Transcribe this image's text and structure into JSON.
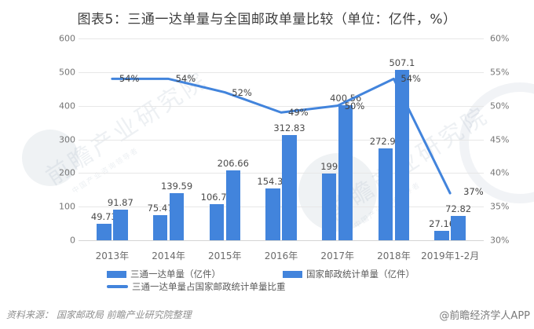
{
  "chart_data": {
    "type": "bar+line",
    "title": "图表5：三通一达单量与全国邮政单量比较（单位：亿件，%）",
    "categories": [
      "2013年",
      "2014年",
      "2015年",
      "2016年",
      "2017年",
      "2018年",
      "2019年1-2月"
    ],
    "series": [
      {
        "name": "三通一达单量（亿件）",
        "type": "bar",
        "axis": "left",
        "values": [
          49.73,
          75.47,
          106.77,
          154.32,
          199,
          272.95,
          27.16
        ],
        "labels": [
          "49.73",
          "75.47",
          "106.77",
          "154.32",
          "199",
          "272.95",
          "27.16"
        ],
        "color": "#4284dc"
      },
      {
        "name": "国家邮政统计单量（亿件）",
        "type": "bar",
        "axis": "left",
        "values": [
          91.87,
          139.59,
          206.66,
          312.83,
          400.56,
          507.1,
          72.82
        ],
        "labels": [
          "91.87",
          "139.59",
          "206.66",
          "312.83",
          "400.56",
          "507.1",
          "72.82"
        ],
        "color": "#4284dc"
      },
      {
        "name": "三通一达单量占国家邮政统计单量比重",
        "type": "line",
        "axis": "right",
        "values": [
          54,
          54,
          52,
          49,
          50,
          54,
          37
        ],
        "labels": [
          "54%",
          "54%",
          "52%",
          "49%",
          "50%",
          "54%",
          "37%"
        ],
        "color": "#4284dc"
      }
    ],
    "left_axis": {
      "min": 0,
      "max": 600,
      "step": 100,
      "tick_labels": [
        "0",
        "100",
        "200",
        "300",
        "400",
        "500",
        "600"
      ]
    },
    "right_axis": {
      "min": 30,
      "max": 60,
      "step": 5,
      "tick_labels": [
        "30%",
        "35%",
        "40%",
        "45%",
        "50%",
        "55%",
        "60%"
      ]
    },
    "grid": true,
    "legend_position": "bottom"
  },
  "footer": {
    "source": "资料来源：  国家邮政局 前瞻产业研究院整理",
    "brand": "@前瞻经济学人APP"
  },
  "watermark": {
    "text": "前瞻产业研究院",
    "sub": "中国产业咨询领导者"
  }
}
